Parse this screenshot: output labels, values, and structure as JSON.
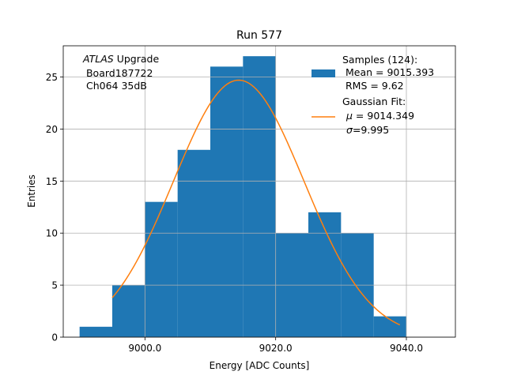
{
  "chart_data": {
    "type": "bar",
    "title": "Run 577",
    "xlabel": "Energy [ADC Counts]",
    "ylabel": "Entries",
    "xlim": [
      8987.5,
      9047.5
    ],
    "ylim": [
      0,
      28
    ],
    "xticks": [
      9000.0,
      9020.0,
      9040.0
    ],
    "xtick_labels": [
      "9000.0",
      "9020.0",
      "9040.0"
    ],
    "yticks": [
      0,
      5,
      10,
      15,
      20,
      25
    ],
    "ytick_labels": [
      "0",
      "5",
      "10",
      "15",
      "20",
      "25"
    ],
    "grid": true,
    "bin_edges": [
      8990,
      8995,
      9000,
      9005,
      9010,
      9015,
      9020,
      9025,
      9030,
      9035,
      9040
    ],
    "counts": [
      1,
      5,
      13,
      18,
      26,
      27,
      10,
      12,
      10,
      2
    ],
    "bar_color": "#1f77b4",
    "fit": {
      "name": "Gaussian Fit",
      "mu": 9014.349,
      "sigma": 9.995,
      "amplitude": 24.7,
      "x_range": [
        8995,
        9039
      ],
      "color": "#ff7f0e"
    },
    "annotation": {
      "italic_part": "ATLAS",
      "line1_rest": " Upgrade",
      "line2": " Board187722",
      "line3": " Ch064 35dB"
    },
    "legend": {
      "location": "top-right",
      "samples_title": "Samples (124):",
      "samples_mean": " Mean = 9015.393",
      "samples_rms": " RMS = 9.62",
      "fit_title": "Gaussian Fit:",
      "fit_mu_symbol": "μ",
      "fit_mu_value": " = 9014.349",
      "fit_sigma_symbol": "σ",
      "fit_sigma_value": "=9.995"
    }
  }
}
